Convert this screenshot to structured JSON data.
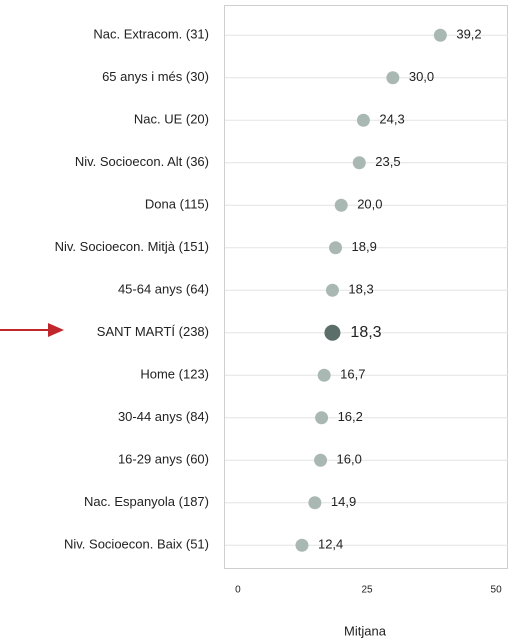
{
  "chart_data": {
    "type": "dot",
    "xlabel": "Mitjana",
    "categories": [
      "Nac. Extracom. (31)",
      "65 anys i més (30)",
      "Nac. UE (20)",
      "Niv. Socioecon. Alt (36)",
      "Dona (115)",
      "Niv. Socioecon. Mitjà (151)",
      "45-64 anys (64)",
      "SANT MARTÍ (238)",
      "Home (123)",
      "30-44 anys (84)",
      "16-29 anys (60)",
      "Nac. Espanyola (187)",
      "Niv. Socioecon. Baix (51)"
    ],
    "values": [
      39.2,
      30.0,
      24.3,
      23.5,
      20.0,
      18.9,
      18.3,
      18.3,
      16.7,
      16.2,
      16.0,
      14.9,
      12.4
    ],
    "value_labels": [
      "39,2",
      "30,0",
      "24,3",
      "23,5",
      "20,0",
      "18,9",
      "18,3",
      "18,3",
      "16,7",
      "16,2",
      "16,0",
      "14,9",
      "12,4"
    ],
    "colors": [
      "#aab8b3",
      "#aab8b3",
      "#aab8b3",
      "#aab8b3",
      "#aab8b3",
      "#aab8b3",
      "#aab8b3",
      "#5c6e6a",
      "#aab8b3",
      "#aab8b3",
      "#aab8b3",
      "#aab8b3",
      "#aab8b3"
    ],
    "label_colors": [
      "#222222",
      "#222222",
      "#222222",
      "#222222",
      "#222222",
      "#222222",
      "#222222",
      "#d0312d",
      "#222222",
      "#222222",
      "#222222",
      "#222222",
      "#222222"
    ],
    "xlim": [
      -2.7,
      52.3
    ],
    "xticks": [
      0,
      25,
      50
    ]
  }
}
